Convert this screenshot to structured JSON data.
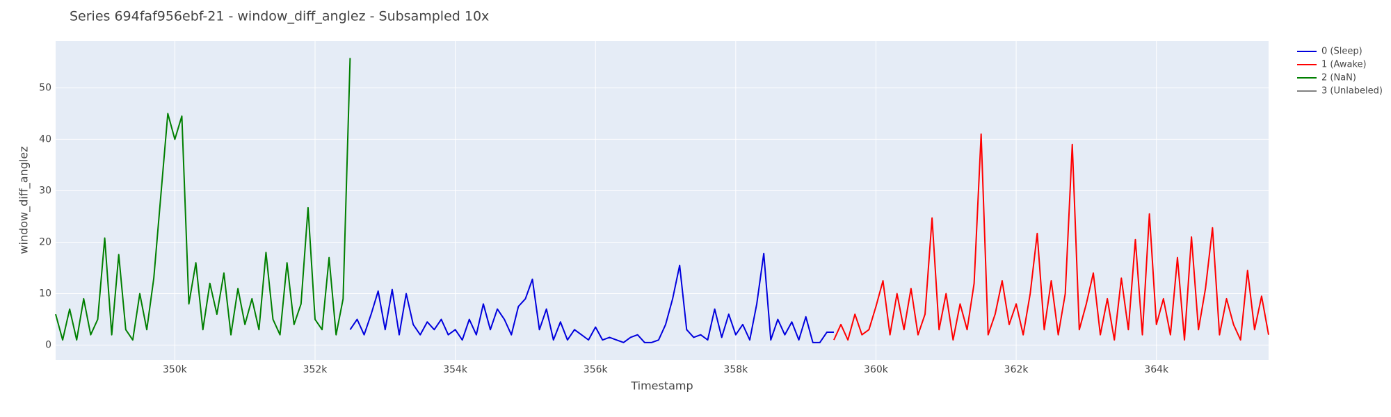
{
  "chart_data": {
    "type": "line",
    "title": "Series 694faf956ebf-21 - window_diff_anglez - Subsampled 10x",
    "x_label": "Timestamp",
    "y_label": "window_diff_anglez",
    "xlim": [
      348300,
      365600
    ],
    "ylim": [
      -2.9,
      59.1
    ],
    "xticks": [
      {
        "value": 350000,
        "label": "350k"
      },
      {
        "value": 352000,
        "label": "352k"
      },
      {
        "value": 354000,
        "label": "354k"
      },
      {
        "value": 356000,
        "label": "356k"
      },
      {
        "value": 358000,
        "label": "358k"
      },
      {
        "value": 360000,
        "label": "360k"
      },
      {
        "value": 362000,
        "label": "362k"
      },
      {
        "value": 364000,
        "label": "364k"
      }
    ],
    "yticks": [
      0,
      10,
      20,
      30,
      40,
      50
    ],
    "grid": true,
    "legend": "right",
    "series": [
      {
        "name": "0 (Sleep)",
        "color": "#0000dd",
        "x": [
          352500,
          352600,
          352700,
          352800,
          352900,
          353000,
          353100,
          353200,
          353300,
          353400,
          353500,
          353600,
          353700,
          353800,
          353900,
          354000,
          354100,
          354200,
          354300,
          354400,
          354500,
          354600,
          354700,
          354800,
          354900,
          355000,
          355100,
          355200,
          355300,
          355400,
          355500,
          355600,
          355700,
          355800,
          355900,
          356000,
          356100,
          356200,
          356300,
          356400,
          356500,
          356600,
          356700,
          356800,
          356900,
          357000,
          357100,
          357200,
          357300,
          357400,
          357500,
          357600,
          357700,
          357800,
          357900,
          358000,
          358100,
          358200,
          358300,
          358400,
          358500,
          358600,
          358700,
          358800,
          358900,
          359000,
          359100,
          359200,
          359300,
          359400
        ],
        "values": [
          3,
          5,
          2,
          6,
          10.5,
          3,
          10.8,
          2,
          10,
          4,
          2,
          4.5,
          3,
          5,
          2,
          3,
          1,
          5,
          2,
          8,
          3,
          7,
          5,
          2,
          7.5,
          9,
          12.8,
          3,
          7,
          1,
          4.5,
          1,
          3,
          2,
          1,
          3.5,
          1,
          1.5,
          1,
          0.5,
          1.5,
          2,
          0.5,
          0.5,
          1,
          4,
          9,
          15.5,
          3,
          1.5,
          2,
          1,
          7,
          1.5,
          6,
          2,
          4,
          1,
          8,
          17.8,
          1,
          5,
          2,
          4.5,
          1,
          5.5,
          0.5,
          0.5,
          2.5,
          2.5
        ]
      },
      {
        "name": "1 (Awake)",
        "color": "#ff0000",
        "x": [
          359400,
          359500,
          359600,
          359700,
          359800,
          359900,
          360000,
          360100,
          360200,
          360300,
          360400,
          360500,
          360600,
          360700,
          360800,
          360900,
          361000,
          361100,
          361200,
          361300,
          361400,
          361500,
          361600,
          361700,
          361800,
          361900,
          362000,
          362100,
          362200,
          362300,
          362400,
          362500,
          362600,
          362700,
          362800,
          362900,
          363000,
          363100,
          363200,
          363300,
          363400,
          363500,
          363600,
          363700,
          363800,
          363900,
          364000,
          364100,
          364200,
          364300,
          364400,
          364500,
          364600,
          364700,
          364800,
          364900,
          365000,
          365100,
          365200,
          365300,
          365400,
          365500,
          365600
        ],
        "values": [
          1,
          4,
          1,
          6,
          2,
          3,
          7.5,
          12.5,
          2,
          10,
          3,
          11,
          2,
          6,
          24.7,
          3,
          10,
          1,
          8,
          3,
          12,
          41,
          2,
          6,
          12.5,
          4,
          8,
          2,
          10,
          21.7,
          3,
          12.5,
          2,
          10,
          39,
          3,
          8,
          14,
          2,
          9,
          1,
          13,
          3,
          20.5,
          2,
          25.5,
          4,
          9,
          2,
          17,
          1,
          21,
          3,
          11,
          22.8,
          2,
          9,
          4,
          1,
          14.5,
          3,
          9.5,
          2
        ]
      },
      {
        "name": "2 (NaN)",
        "color": "#007f00",
        "x": [
          348300,
          348400,
          348500,
          348600,
          348700,
          348800,
          348900,
          349000,
          349100,
          349200,
          349300,
          349400,
          349500,
          349600,
          349700,
          349800,
          349900,
          350000,
          350100,
          350200,
          350300,
          350400,
          350500,
          350600,
          350700,
          350800,
          350900,
          351000,
          351100,
          351200,
          351300,
          351400,
          351500,
          351600,
          351700,
          351800,
          351900,
          352000,
          352100,
          352200,
          352300,
          352400,
          352500
        ],
        "values": [
          6,
          1,
          7,
          1,
          9,
          2,
          5,
          20.8,
          2,
          17.6,
          3,
          1,
          10,
          3,
          13,
          29,
          45,
          40,
          44.5,
          8,
          16,
          3,
          12,
          6,
          14,
          2,
          11,
          4,
          9,
          3,
          18,
          5,
          2,
          16,
          4,
          8,
          26.7,
          5,
          3,
          17,
          2,
          9,
          55.8
        ]
      },
      {
        "name": "3 (Unlabeled)",
        "color": "#808080",
        "x": [],
        "values": []
      }
    ]
  }
}
